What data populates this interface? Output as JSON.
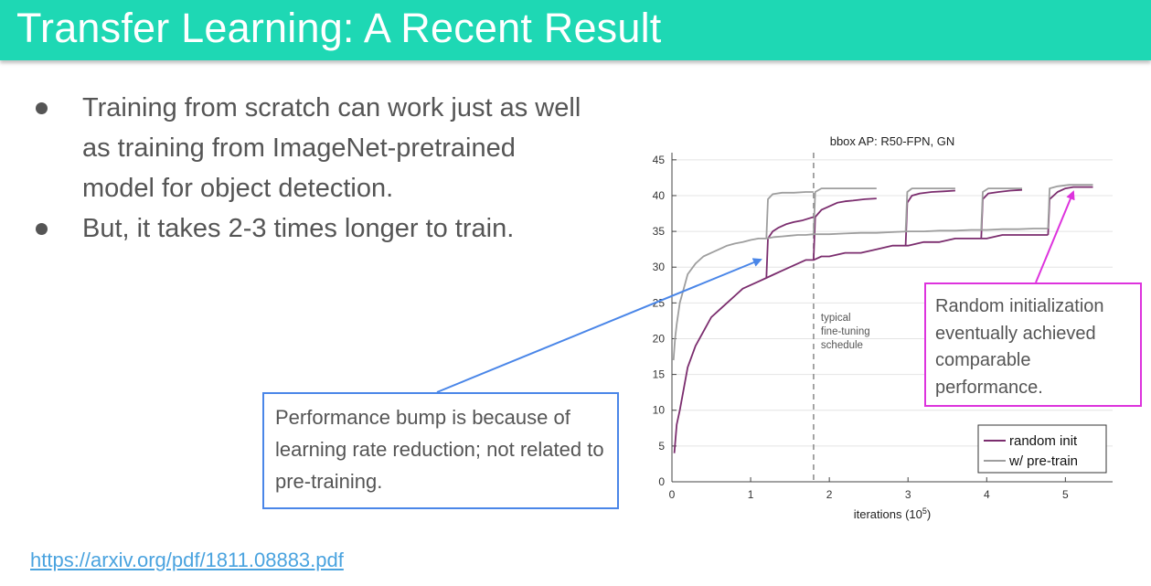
{
  "slide": {
    "title": "Transfer Learning: A Recent Result",
    "bullets": [
      "Training from scratch can work just as well as training from ImageNet-pretrained model for object detection.",
      "But, it takes 2-3 times longer to train."
    ],
    "link": "https://arxiv.org/pdf/1811.08883.pdf",
    "callout_left": "Performance bump is because of learning rate reduction; not related to pre-training.",
    "callout_right": "Random initialization eventually achieved comparable performance.",
    "colors": {
      "header": "#1ed8b4",
      "callout_left_border": "#4a86e8",
      "callout_right_border": "#dd33dd"
    }
  },
  "chart_data": {
    "type": "line",
    "title": "bbox AP: R50-FPN, GN",
    "xlabel": "iterations (10",
    "xlabel_sup": "5",
    "xlabel_end": ")",
    "ylabel": "",
    "xlim": [
      0,
      5.6
    ],
    "ylim": [
      0,
      46
    ],
    "xticks": [
      0,
      1,
      2,
      3,
      4,
      5
    ],
    "yticks": [
      0,
      5,
      10,
      15,
      20,
      25,
      30,
      35,
      40,
      45
    ],
    "grid": "horizontal",
    "legend_position": "bottom-right",
    "annotation": {
      "text": [
        "typical",
        "fine-tuning",
        "schedule"
      ],
      "x": 1.8
    },
    "series": [
      {
        "name": "random init",
        "color": "#7b2d6e",
        "segments": [
          {
            "x": [
              0.03,
              0.06,
              0.1,
              0.15,
              0.2,
              0.3,
              0.4,
              0.5,
              0.6,
              0.7,
              0.8,
              0.9,
              1.0,
              1.1,
              1.2,
              1.3,
              1.4,
              1.5,
              1.6,
              1.7,
              1.8,
              1.9,
              2.0,
              2.2,
              2.4,
              2.6,
              2.8,
              3.0,
              3.2,
              3.4,
              3.6,
              3.8,
              4.0,
              4.2,
              4.4,
              4.6,
              4.78
            ],
            "y": [
              4,
              8,
              10,
              13,
              16,
              19,
              21,
              23,
              24,
              25,
              26,
              27,
              27.5,
              28,
              28.5,
              29,
              29.5,
              30,
              30.5,
              31,
              31,
              31.5,
              31.5,
              32,
              32,
              32.5,
              33,
              33,
              33.5,
              33.5,
              34,
              34,
              34,
              34.5,
              34.5,
              34.5,
              34.5
            ]
          },
          {
            "x": [
              1.2,
              1.22,
              1.28,
              1.35,
              1.45,
              1.55,
              1.65,
              1.8
            ],
            "y": [
              28.5,
              34,
              35,
              35.5,
              36,
              36.3,
              36.5,
              37
            ]
          },
          {
            "x": [
              1.8,
              1.82,
              1.9,
              2.0,
              2.1,
              2.2,
              2.3,
              2.45,
              2.6
            ],
            "y": [
              31,
              37,
              38,
              38.5,
              39,
              39.2,
              39.3,
              39.5,
              39.6
            ]
          },
          {
            "x": [
              2.97,
              2.99,
              3.05,
              3.15,
              3.3,
              3.45,
              3.6
            ],
            "y": [
              33,
              39,
              40,
              40.3,
              40.5,
              40.6,
              40.7
            ]
          },
          {
            "x": [
              3.93,
              3.95,
              4.02,
              4.15,
              4.3,
              4.45
            ],
            "y": [
              34,
              39.5,
              40.3,
              40.5,
              40.7,
              40.8
            ]
          },
          {
            "x": [
              4.78,
              4.8,
              4.9,
              5.0,
              5.1,
              5.2,
              5.35
            ],
            "y": [
              34.5,
              39.5,
              40.5,
              41,
              41.2,
              41.2,
              41.2
            ]
          }
        ]
      },
      {
        "name": "w/ pre-train",
        "color": "#9e9e9e",
        "segments": [
          {
            "x": [
              0.02,
              0.04,
              0.06,
              0.1,
              0.15,
              0.2,
              0.3,
              0.4,
              0.5,
              0.6,
              0.7,
              0.8,
              0.9,
              1.0,
              1.1,
              1.2,
              1.3,
              1.4,
              1.5,
              1.6,
              1.7,
              1.8,
              2.0,
              2.2,
              2.4,
              2.6,
              2.8,
              3.0,
              3.2,
              3.4,
              3.6,
              3.8,
              4.0,
              4.2,
              4.4,
              4.6,
              4.78
            ],
            "y": [
              17,
              20,
              22,
              25,
              27,
              29,
              30.5,
              31.5,
              32,
              32.5,
              33,
              33.3,
              33.5,
              33.8,
              34,
              34,
              34.2,
              34.3,
              34.4,
              34.5,
              34.5,
              34.6,
              34.6,
              34.7,
              34.8,
              34.8,
              34.9,
              35,
              35,
              35.1,
              35.1,
              35.2,
              35.2,
              35.3,
              35.3,
              35.4,
              35.4
            ]
          },
          {
            "x": [
              1.2,
              1.22,
              1.28,
              1.4,
              1.55,
              1.7,
              1.8
            ],
            "y": [
              34,
              39.5,
              40.2,
              40.4,
              40.4,
              40.5,
              40.5
            ]
          },
          {
            "x": [
              1.8,
              1.82,
              1.9,
              2.05,
              2.2,
              2.4,
              2.6
            ],
            "y": [
              34.6,
              40.5,
              41,
              41,
              41,
              41,
              41
            ]
          },
          {
            "x": [
              2.97,
              2.99,
              3.05,
              3.2,
              3.35,
              3.5,
              3.6
            ],
            "y": [
              35,
              40.5,
              41,
              41,
              41,
              41,
              41
            ]
          },
          {
            "x": [
              3.93,
              3.95,
              4.02,
              4.15,
              4.3,
              4.45
            ],
            "y": [
              35.3,
              40.5,
              41,
              41,
              41,
              41
            ]
          },
          {
            "x": [
              4.78,
              4.8,
              4.9,
              5.05,
              5.2,
              5.35
            ],
            "y": [
              35.4,
              41,
              41.3,
              41.5,
              41.5,
              41.5
            ]
          }
        ]
      }
    ]
  }
}
